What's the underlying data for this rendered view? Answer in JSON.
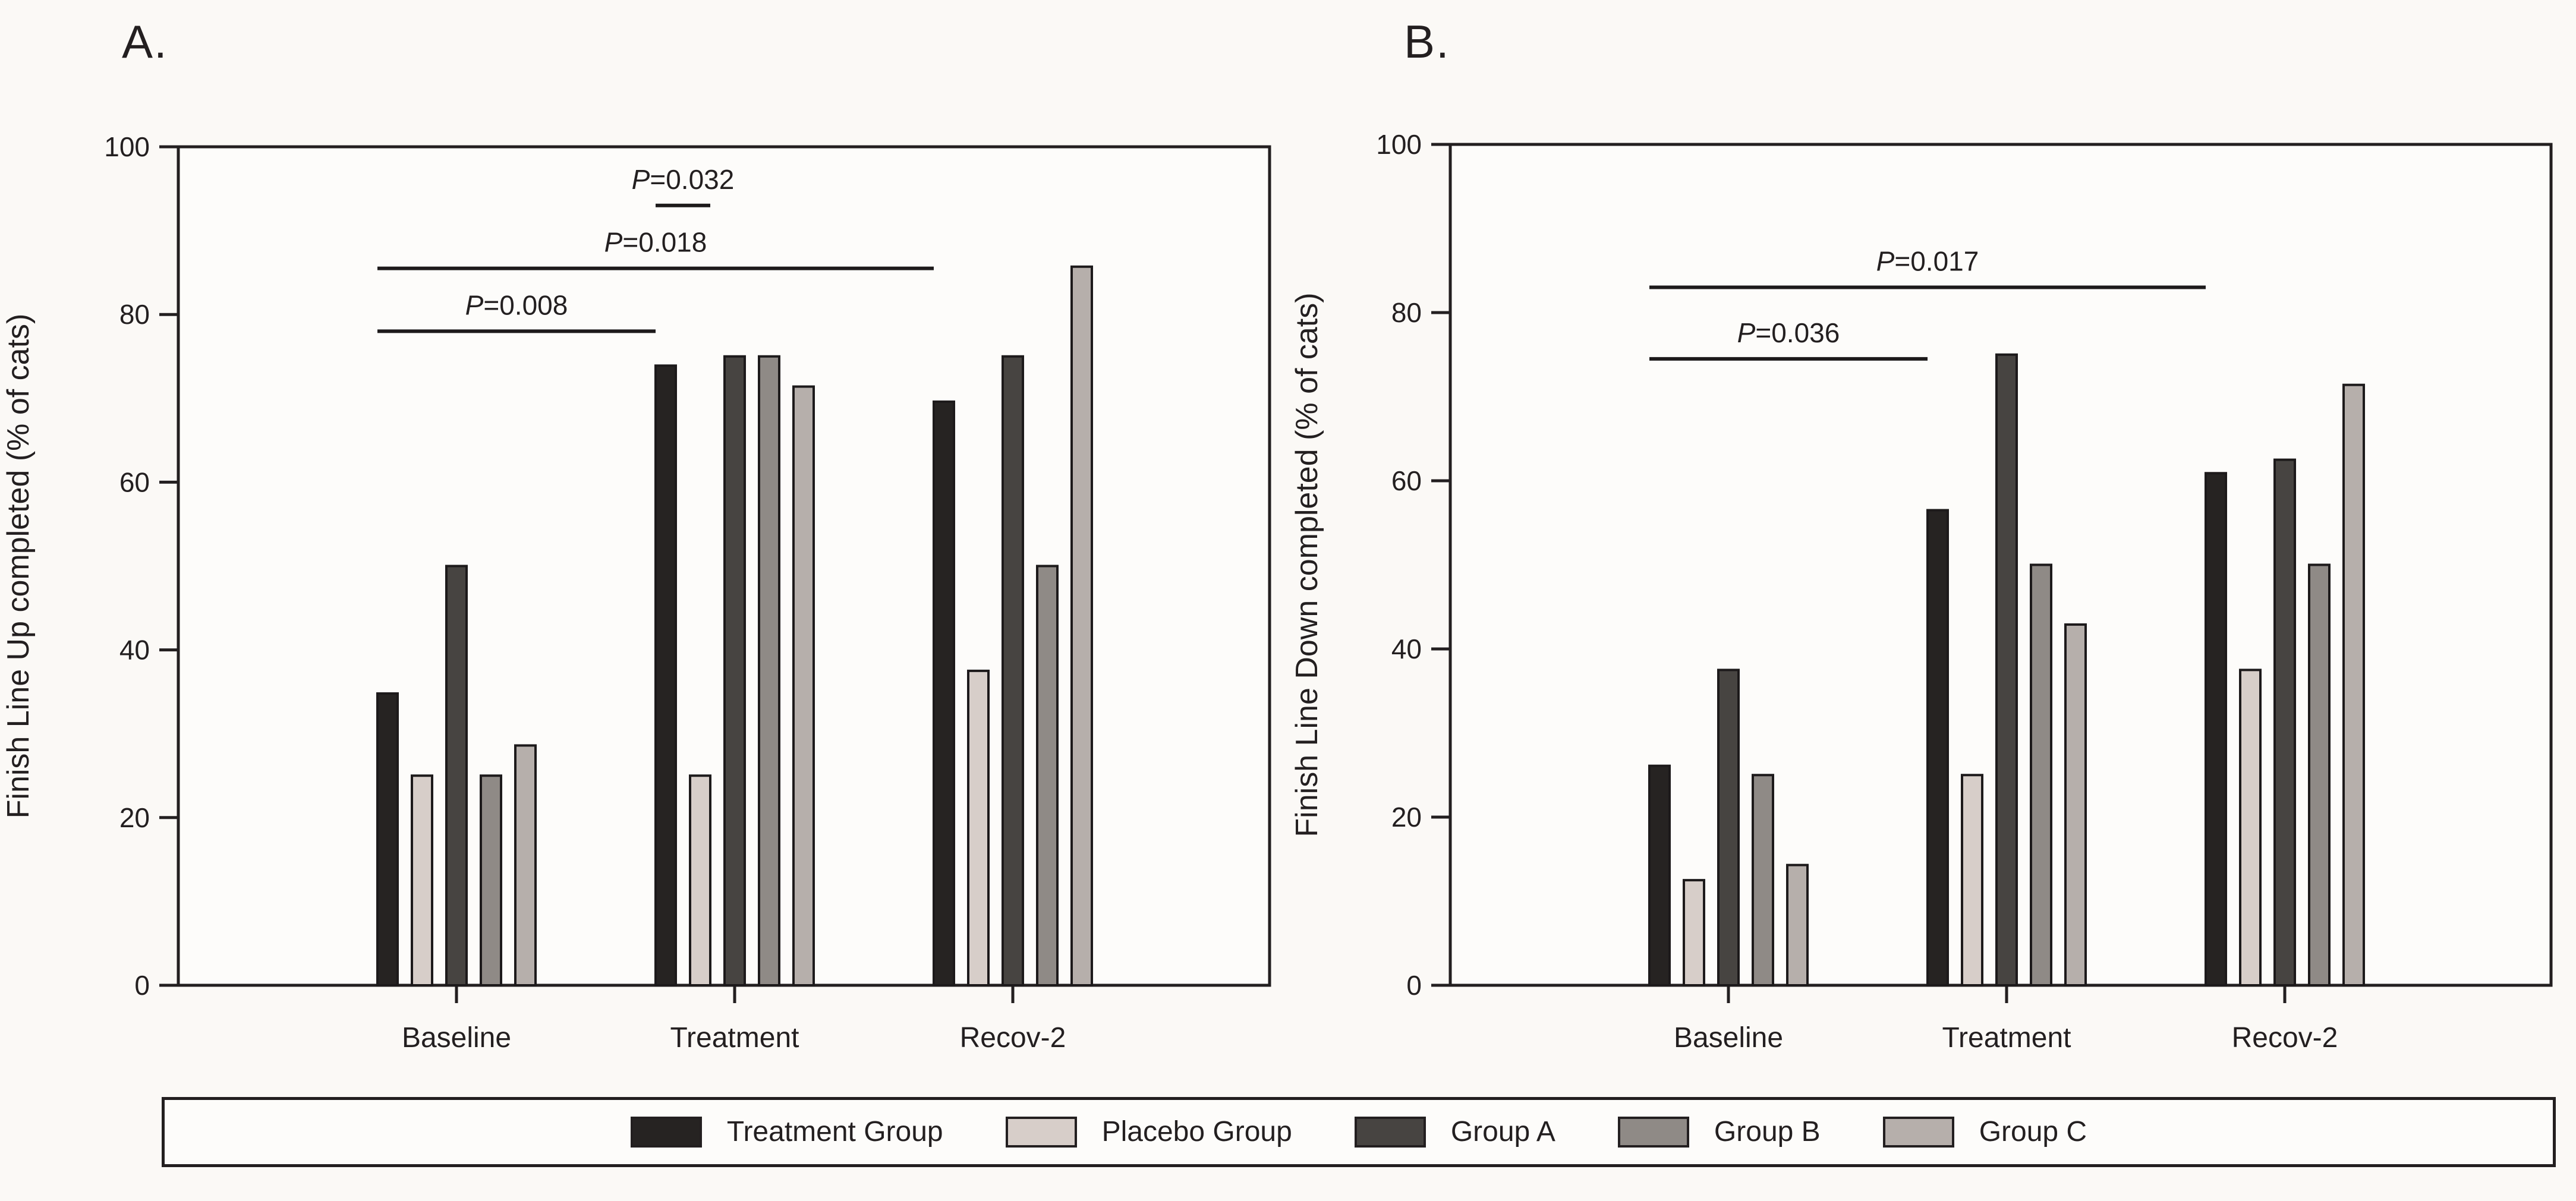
{
  "figure": {
    "background": "#fbf9f6",
    "axis_color": "#231f20",
    "bar_outline_color": "#1d1a1b"
  },
  "chart_data": [
    {
      "type": "bar",
      "panel_label": "A.",
      "ylabel": "Finish Line Up completed (% of cats)",
      "xlabel": "",
      "categories": [
        "Baseline",
        "Treatment",
        "Recov-2"
      ],
      "yticks": [
        0,
        20,
        40,
        60,
        80,
        100
      ],
      "ylim": [
        0,
        100
      ],
      "grid": false,
      "series": [
        {
          "name": "Treatment Group",
          "color": "#262322",
          "values": [
            34.8,
            73.9,
            69.6
          ]
        },
        {
          "name": "Placebo Group",
          "color": "#d7cec9",
          "values": [
            25,
            25,
            37.5
          ]
        },
        {
          "name": "Group A",
          "color": "#474441",
          "values": [
            50,
            75,
            75
          ]
        },
        {
          "name": "Group B",
          "color": "#8f8a86",
          "values": [
            25,
            75,
            50
          ]
        },
        {
          "name": "Group C",
          "color": "#b6afab",
          "values": [
            28.6,
            71.4,
            85.7
          ]
        }
      ],
      "annotations": [
        {
          "label": "P=0.008",
          "y": 78,
          "from": {
            "cat": 0,
            "bar": 0,
            "edge": "left"
          },
          "to": {
            "cat": 1,
            "bar": 0,
            "edge": "left"
          }
        },
        {
          "label": "P=0.018",
          "y": 85.5,
          "from": {
            "cat": 0,
            "bar": 0,
            "edge": "left"
          },
          "to": {
            "cat": 2,
            "bar": 0,
            "edge": "left"
          }
        },
        {
          "label": "P=0.032",
          "y": 93,
          "from": {
            "cat": 1,
            "bar": 0,
            "edge": "left"
          },
          "to": {
            "cat": 1,
            "bar": 1,
            "edge": "right"
          }
        }
      ]
    },
    {
      "type": "bar",
      "panel_label": "B.",
      "ylabel": "Finish Line Down completed (% of cats)",
      "xlabel": "",
      "categories": [
        "Baseline",
        "Treatment",
        "Recov-2"
      ],
      "yticks": [
        0,
        20,
        40,
        60,
        80,
        100
      ],
      "ylim": [
        0,
        100
      ],
      "grid": false,
      "series": [
        {
          "name": "Treatment Group",
          "color": "#262322",
          "values": [
            26.1,
            56.5,
            60.9
          ]
        },
        {
          "name": "Placebo Group",
          "color": "#d7cec9",
          "values": [
            12.5,
            25,
            37.5
          ]
        },
        {
          "name": "Group A",
          "color": "#474441",
          "values": [
            37.5,
            75,
            62.5
          ]
        },
        {
          "name": "Group B",
          "color": "#8f8a86",
          "values": [
            25,
            50,
            50
          ]
        },
        {
          "name": "Group C",
          "color": "#b6afab",
          "values": [
            14.3,
            42.9,
            71.4
          ]
        }
      ],
      "annotations": [
        {
          "label": "P=0.036",
          "y": 74.5,
          "from": {
            "cat": 0,
            "bar": 0,
            "edge": "left"
          },
          "to": {
            "cat": 1,
            "bar": 0,
            "edge": "left"
          }
        },
        {
          "label": "P=0.017",
          "y": 83,
          "from": {
            "cat": 0,
            "bar": 0,
            "edge": "left"
          },
          "to": {
            "cat": 2,
            "bar": 0,
            "edge": "left"
          }
        }
      ]
    }
  ],
  "legend": {
    "items": [
      {
        "label": "Treatment Group",
        "color": "#262322"
      },
      {
        "label": "Placebo Group",
        "color": "#d7cec9"
      },
      {
        "label": "Group A",
        "color": "#474441"
      },
      {
        "label": "Group B",
        "color": "#8f8a86"
      },
      {
        "label": "Group C",
        "color": "#b6afab"
      }
    ]
  }
}
